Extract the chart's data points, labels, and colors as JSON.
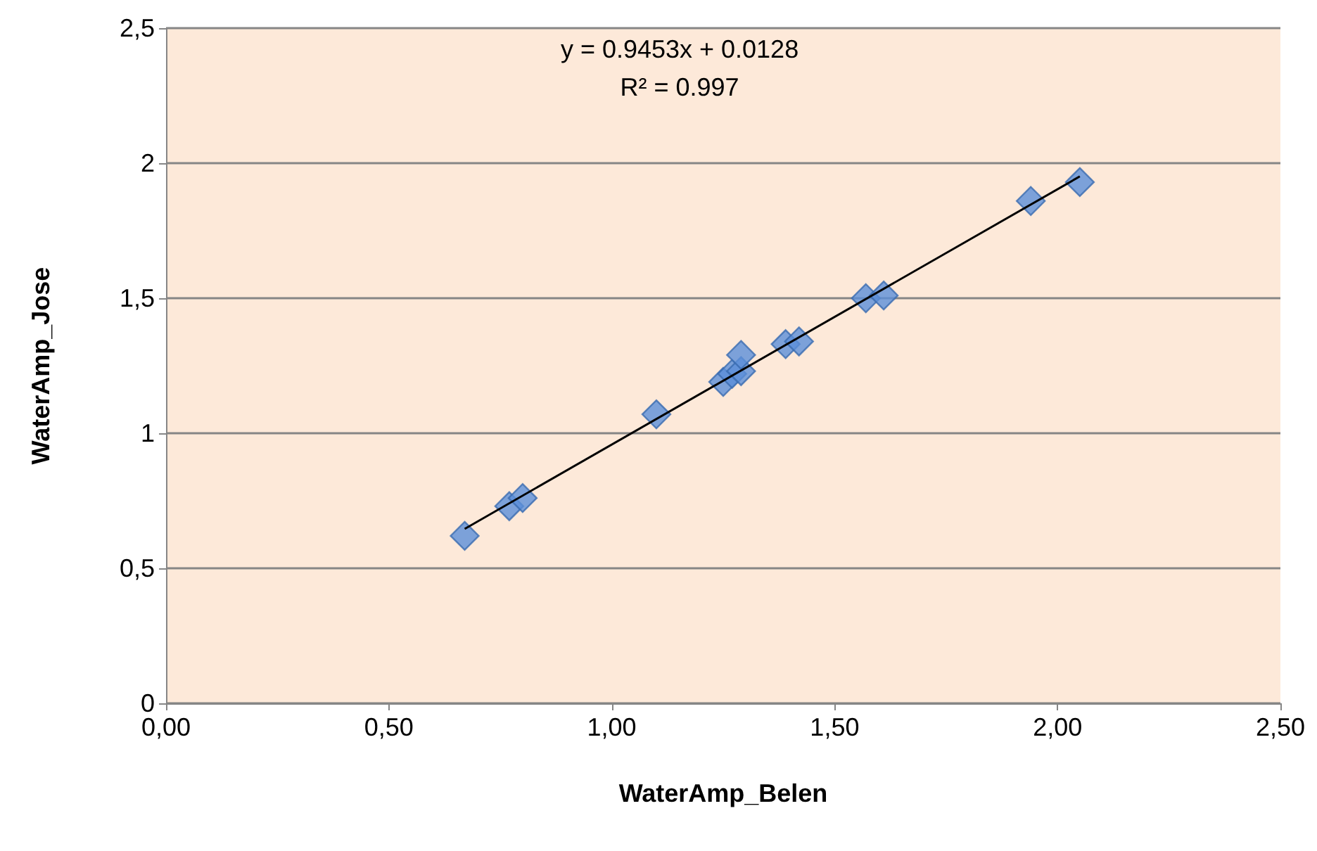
{
  "chart_data": {
    "type": "scatter",
    "xlabel": "WaterAmp_Belen",
    "ylabel": "WaterAmp_Jose",
    "annotations": [
      "y = 0.9453x + 0.0128",
      "R² = 0.997"
    ],
    "series": [
      {
        "color": "#5b8fd8",
        "marker": "diamond",
        "x": [
          0.67,
          0.77,
          0.8,
          1.1,
          1.25,
          1.27,
          1.29,
          1.29,
          1.39,
          1.42,
          1.57,
          1.61,
          1.94,
          2.05
        ],
        "values": [
          0.62,
          0.73,
          0.76,
          1.07,
          1.19,
          1.22,
          1.23,
          1.29,
          1.33,
          1.34,
          1.5,
          1.51,
          1.86,
          1.93
        ]
      },
      {
        "type": "line",
        "color": "#000000",
        "marker": "none",
        "line_style": "solid",
        "x": [
          0.67,
          2.05
        ],
        "values": [
          0.646,
          1.951
        ]
      }
    ],
    "xlim": [
      0,
      2.5
    ],
    "ylim": [
      0,
      2.5
    ],
    "xticks": [
      {
        "value": 0,
        "label": "0,00"
      },
      {
        "value": 0.5,
        "label": "0,50"
      },
      {
        "value": 1,
        "label": "1,00"
      },
      {
        "value": 1.5,
        "label": "1,50"
      },
      {
        "value": 2,
        "label": "2,00"
      },
      {
        "value": 2.5,
        "label": "2,50"
      }
    ],
    "yticks": [
      0,
      {
        "value": 0.5,
        "label": "0,5"
      },
      1,
      {
        "value": 1.5,
        "label": "1,5"
      },
      2,
      {
        "value": 2.5,
        "label": "2,5"
      }
    ],
    "grid": "y"
  }
}
